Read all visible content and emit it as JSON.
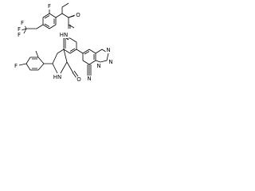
{
  "atoms": [
    {
      "label": "F"
    },
    {
      "label": "F"
    },
    {
      "label": "F"
    },
    {
      "label": "F"
    },
    {
      "label": "O"
    },
    {
      "label": "HN"
    },
    {
      "label": "F"
    },
    {
      "label": "HN"
    },
    {
      "label": "O"
    },
    {
      "label": "N"
    },
    {
      "label": "N"
    },
    {
      "label": "N"
    },
    {
      "label": "N"
    }
  ]
}
